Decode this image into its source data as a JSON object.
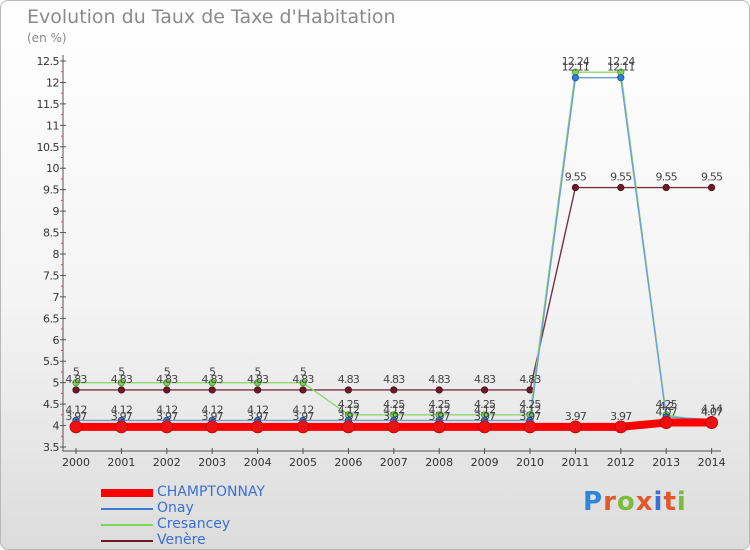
{
  "header": {
    "title": "Evolution du Taux de Taxe d'Habitation",
    "unit": "(en %)"
  },
  "logo": {
    "text": "Proxiti",
    "letter_colors": [
      "#2f86d8",
      "#e2582e",
      "#7cbc3b",
      "#e2582e",
      "#3a70d6",
      "#e2582e",
      "#7cbc3b"
    ]
  },
  "chart_data": {
    "type": "line",
    "title": "Evolution du Taux de Taxe d'Habitation",
    "ylabel": "(en %)",
    "xlabel": "",
    "x": [
      "2000",
      "2001",
      "2002",
      "2003",
      "2004",
      "2005",
      "2006",
      "2007",
      "2008",
      "2009",
      "2010",
      "2011",
      "2012",
      "2013",
      "2014"
    ],
    "ylim": [
      3.5,
      12.5
    ],
    "ytick_step": 0.5,
    "yticks": [
      "3.5",
      "4",
      "4.5",
      "5",
      "5.5",
      "6",
      "6.5",
      "7",
      "7.5",
      "8",
      "8.5",
      "9",
      "9.5",
      "10",
      "10.5",
      "11",
      "11.5",
      "12",
      "12.5"
    ],
    "grid": false,
    "legend_position": "bottom-left",
    "series": [
      {
        "name": "CHAMPTONNAY",
        "color": "#ff0000",
        "values": [
          3.97,
          3.97,
          3.97,
          3.97,
          3.97,
          3.97,
          3.97,
          3.97,
          3.97,
          3.97,
          3.97,
          3.97,
          3.97,
          4.07,
          4.07
        ],
        "labels": [
          "3.97",
          "3.97",
          "3.97",
          "3.97",
          "3.97",
          "3.97",
          "3.97",
          "3.97",
          "3.97",
          "3.97",
          "3.97",
          "3.97",
          "3.97",
          "4.07",
          "4.07"
        ]
      },
      {
        "name": "Onay",
        "color": "#3a7bd5",
        "values": [
          4.12,
          4.12,
          4.12,
          4.12,
          4.12,
          4.12,
          4.12,
          4.12,
          4.12,
          4.12,
          4.12,
          12.11,
          12.11,
          4.2,
          4.14
        ],
        "labels": [
          "4.12",
          "4.12",
          "4.12",
          "4.12",
          "4.12",
          "4.12",
          "4.12",
          "4.12",
          "4.12",
          "4.12",
          "4.12",
          "12.11",
          "12.11",
          "4.2",
          "4.14"
        ]
      },
      {
        "name": "Cresancey",
        "color": "#7dd65a",
        "values": [
          5,
          5,
          5,
          5,
          5,
          5,
          4.25,
          4.25,
          4.25,
          4.25,
          4.25,
          12.24,
          12.24,
          4.25,
          4.07
        ],
        "labels": [
          "5",
          "5",
          "5",
          "5",
          "5",
          "5",
          "4.25",
          "4.25",
          "4.25",
          "4.25",
          "4.25",
          "12.24",
          "12.24",
          "4.25",
          "4.07"
        ]
      },
      {
        "name": "Venère",
        "color": "#6b1a2a",
        "values": [
          4.83,
          4.83,
          4.83,
          4.83,
          4.83,
          4.83,
          4.83,
          4.83,
          4.83,
          4.83,
          4.83,
          9.55,
          9.55,
          9.55,
          9.55
        ],
        "labels": [
          "4.83",
          "4.83",
          "4.83",
          "4.83",
          "4.83",
          "4.83",
          "4.83",
          "4.83",
          "4.83",
          "4.83",
          "4.83",
          "9.55",
          "9.55",
          "9.55",
          "9.55"
        ]
      }
    ]
  }
}
